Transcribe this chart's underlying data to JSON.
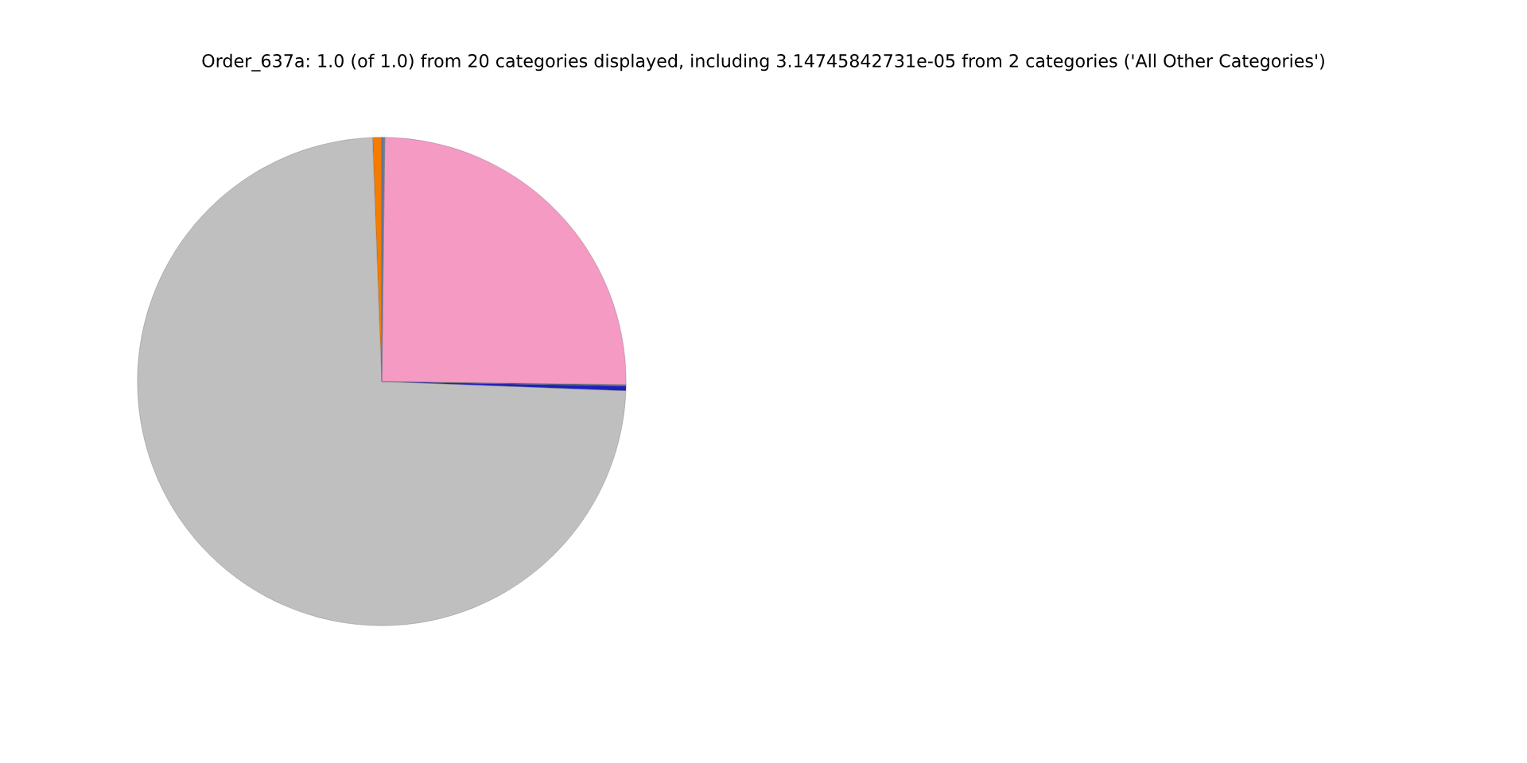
{
  "chart_data": {
    "type": "pie",
    "title": "Order_637a: 1.0 (of 1.0) from 20 categories displayed, including 3.14745842731e-05 from 2 categories ('All Other Categories')",
    "categories": [
      null,
      null,
      null,
      null,
      null,
      null
    ],
    "values": [
      0.6,
      73.8,
      0.3,
      0.1,
      25.0,
      0.2
    ],
    "colors": [
      "#f57c00",
      "#bfbfbf",
      "#1f1fbf",
      "#5a6a8a",
      "#f49ac3",
      "#6a7a9a"
    ],
    "legend": false
  }
}
